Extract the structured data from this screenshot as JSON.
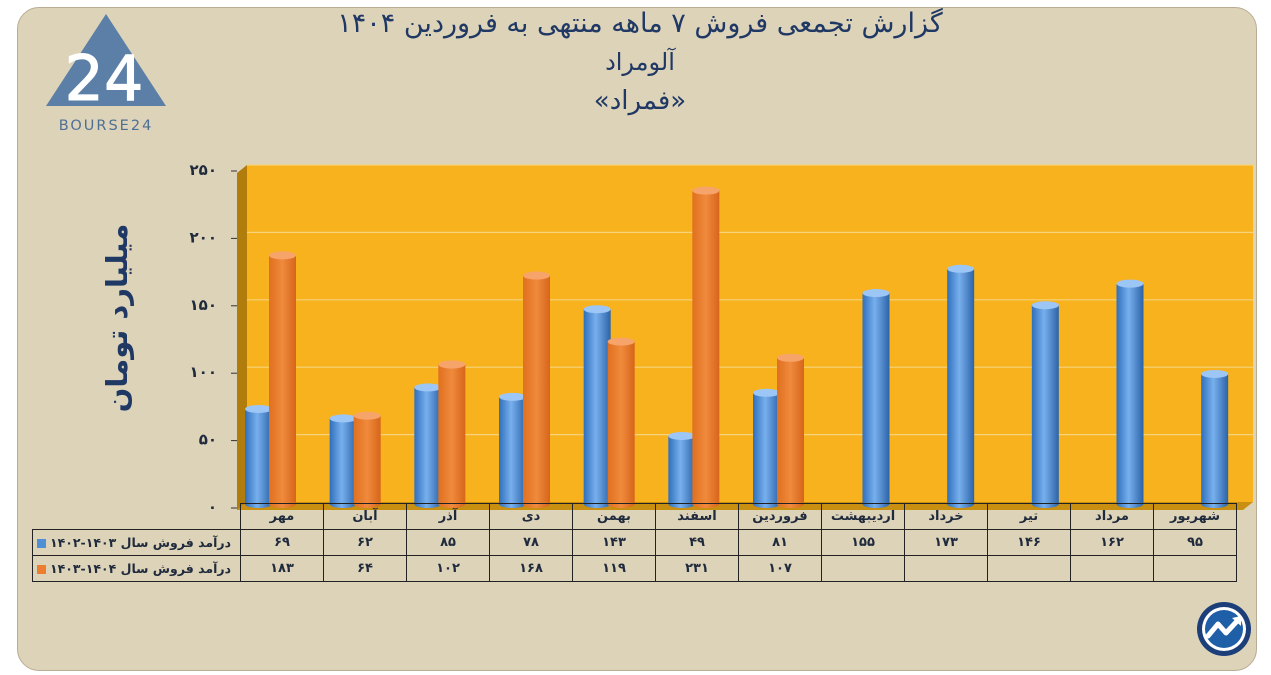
{
  "brand": {
    "logo_text": "BOURSE24",
    "logo_numeral": "24"
  },
  "titles": {
    "line1": "گزارش تجمعی فروش ۷ ماهه منتهی به فروردین ۱۴۰۴",
    "line2": "آلومراد",
    "line3": "«فمراد»"
  },
  "colors": {
    "plot_bg": "#f7b21e",
    "series1": "#4f8fd6",
    "series2": "#ed7d31",
    "frame_bg": "#ddd3b9",
    "text": "#1f3864"
  },
  "chart_data": {
    "type": "bar",
    "ylabel": "میلیارد تومان",
    "ylim": [
      0,
      250
    ],
    "yticks": [
      "۰",
      "۵۰",
      "۱۰۰",
      "۱۵۰",
      "۲۰۰",
      "۲۵۰"
    ],
    "ytick_values": [
      0,
      50,
      100,
      150,
      200,
      250
    ],
    "categories": [
      "مهر",
      "آبان",
      "آذر",
      "دی",
      "بهمن",
      "اسفند",
      "فروردین",
      "اردیبهشت",
      "خرداد",
      "تیر",
      "مرداد",
      "شهریور"
    ],
    "grid": true,
    "legend": "table-below",
    "series": [
      {
        "name": "درآمد فروش سال ۱۴۰۳-۱۴۰۲",
        "values": [
          69,
          62,
          85,
          78,
          143,
          49,
          81,
          155,
          173,
          146,
          162,
          95
        ],
        "labels": [
          "۶۹",
          "۶۲",
          "۸۵",
          "۷۸",
          "۱۴۳",
          "۴۹",
          "۸۱",
          "۱۵۵",
          "۱۷۳",
          "۱۴۶",
          "۱۶۲",
          "۹۵"
        ]
      },
      {
        "name": "درآمد فروش سال ۱۴۰۴-۱۴۰۳",
        "values": [
          183,
          64,
          102,
          168,
          119,
          231,
          107,
          null,
          null,
          null,
          null,
          null
        ],
        "labels": [
          "۱۸۳",
          "۶۴",
          "۱۰۲",
          "۱۶۸",
          "۱۱۹",
          "۲۳۱",
          "۱۰۷",
          "",
          "",
          "",
          "",
          ""
        ]
      }
    ]
  }
}
